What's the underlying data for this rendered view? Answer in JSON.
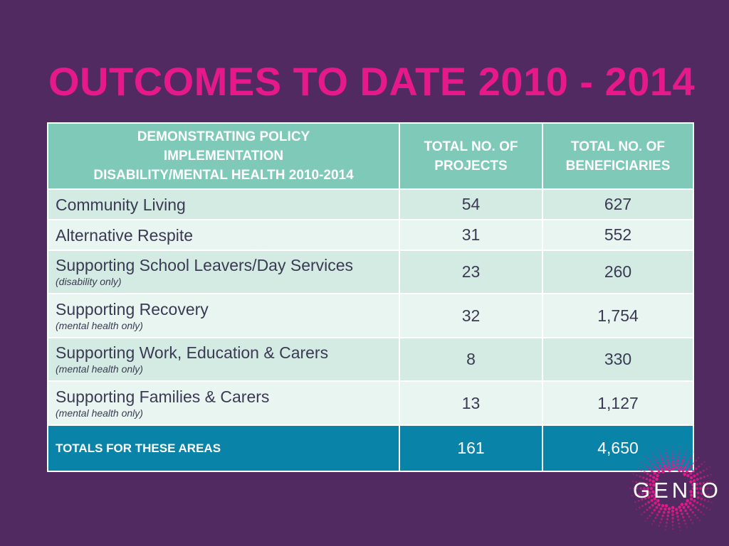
{
  "title": "OUTCOMES TO DATE 2010 - 2014",
  "table": {
    "headers": {
      "col1_line1": "DEMONSTRATING POLICY",
      "col1_line2": "IMPLEMENTATION",
      "col1_line3": "DISABILITY/MENTAL HEALTH 2010-2014",
      "col2_line1": "TOTAL NO. OF",
      "col2_line2": "PROJECTS",
      "col3_line1": "TOTAL NO. OF",
      "col3_line2": "BENEFICIARIES"
    },
    "rows": [
      {
        "label": "Community Living",
        "note": "",
        "projects": "54",
        "beneficiaries": "627"
      },
      {
        "label": "Alternative Respite",
        "note": "",
        "projects": "31",
        "beneficiaries": "552"
      },
      {
        "label": "Supporting School Leavers/Day Services",
        "note": "(disability only)",
        "projects": "23",
        "beneficiaries": "260"
      },
      {
        "label": "Supporting Recovery",
        "note": "(mental health only)",
        "projects": "32",
        "beneficiaries": "1,754"
      },
      {
        "label": "Supporting Work, Education & Carers",
        "note": "(mental health only)",
        "projects": "8",
        "beneficiaries": "330"
      },
      {
        "label": "Supporting Families & Carers",
        "note": "(mental health only)",
        "projects": "13",
        "beneficiaries": "1,127"
      }
    ],
    "totals": {
      "label": "TOTALS FOR THESE AREAS",
      "projects": "161",
      "beneficiaries": "4,650"
    }
  },
  "logo": {
    "text": "GENIO",
    "color": "#e6198a"
  },
  "colors": {
    "background": "#522a62",
    "title": "#e6198a",
    "header": "#7ec9b8",
    "row_odd": "#d4ebe4",
    "row_even": "#e9f5f1",
    "totals": "#0983a7"
  }
}
